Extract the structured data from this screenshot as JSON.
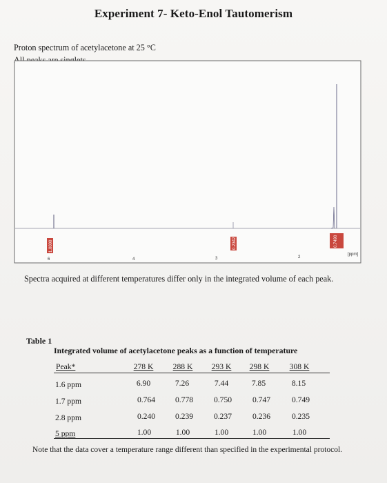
{
  "title": "Experiment 7- Keto-Enol Tautomerism",
  "intro": {
    "line1": "Proton spectrum of acetylacetone at 25 °C",
    "line2": "All peaks are singlets"
  },
  "spectrum": {
    "ticks": [
      "6",
      "4",
      "3",
      "2"
    ],
    "unit": "[ppm]",
    "integral_labels": [
      "1.0000",
      "0.2342",
      "0.7490"
    ]
  },
  "spectra_note": "Spectra acquired at different temperatures differ only in the integrated volume of each peak.",
  "table": {
    "label": "Table 1",
    "caption": "Integrated volume of acetylacetone peaks as a function of temperature",
    "header": [
      "Peak*",
      "278 K",
      "288 K",
      "293 K",
      "298 K",
      "308 K"
    ],
    "rows": [
      {
        "peak": "1.6 ppm",
        "values": [
          "6.90",
          "7.26",
          "7.44",
          "7.85",
          "8.15"
        ]
      },
      {
        "peak": "1.7 ppm",
        "values": [
          "0.764",
          "0.778",
          "0.750",
          "0.747",
          "0.749"
        ]
      },
      {
        "peak": "2.8 ppm",
        "values": [
          "0.240",
          "0.239",
          "0.237",
          "0.236",
          "0.235"
        ]
      },
      {
        "peak": "5 ppm",
        "values": [
          "1.00",
          "1.00",
          "1.00",
          "1.00",
          "1.00"
        ]
      }
    ]
  },
  "footnote": "Note that the data cover a temperature range different than specified in the experimental protocol."
}
